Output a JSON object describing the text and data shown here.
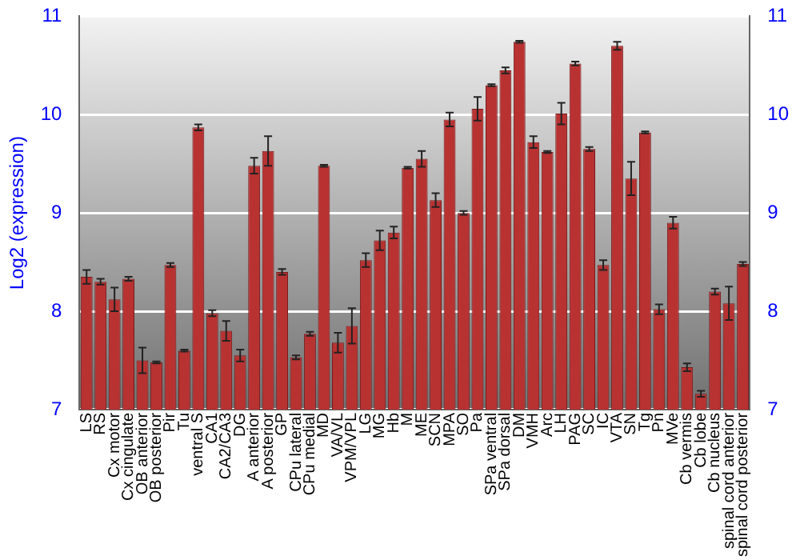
{
  "chart_data": {
    "type": "bar",
    "ylabel": "Log2 (expression)",
    "categories": [
      "LS",
      "RS",
      "Cx motor",
      "Cx cingulate",
      "OB anterior",
      "OB posterior",
      "Pir",
      "Tu",
      "ventral S",
      "CA1",
      "CA2/CA3",
      "DG",
      "A anterior",
      "A posterior",
      "GP",
      "CPu lateral",
      "CPu medial",
      "MD",
      "VA/VL",
      "VPM/VPL",
      "LG",
      "MG",
      "Hb",
      "M",
      "ME",
      "SCN",
      "MPA",
      "SO",
      "Pa",
      "SPa ventral",
      "SPa dorsal",
      "DM",
      "VMH",
      "Arc",
      "LH",
      "PAG",
      "SC",
      "IC",
      "VTA",
      "SN",
      "Tg",
      "Pn",
      "MVe",
      "Cb vermis",
      "Cb lobe",
      "Cb nucleus",
      "spinal cord anterior",
      "spinal cord posterior"
    ],
    "values": [
      8.35,
      8.3,
      8.12,
      8.33,
      7.5,
      7.48,
      8.47,
      7.6,
      9.87,
      7.98,
      7.8,
      7.55,
      9.48,
      9.63,
      8.4,
      7.53,
      7.77,
      9.48,
      7.68,
      7.85,
      8.52,
      8.72,
      8.8,
      9.46,
      9.55,
      9.13,
      9.95,
      9.0,
      10.06,
      10.3,
      10.45,
      10.74,
      9.72,
      9.62,
      10.01,
      10.52,
      9.65,
      8.47,
      10.7,
      9.35,
      9.82,
      8.02,
      8.9,
      7.43,
      7.16,
      8.2,
      8.08,
      8.48
    ],
    "errors": [
      0.07,
      0.03,
      0.12,
      0.02,
      0.13,
      0.01,
      0.02,
      0.01,
      0.03,
      0.03,
      0.1,
      0.06,
      0.08,
      0.15,
      0.03,
      0.02,
      0.02,
      0.01,
      0.1,
      0.18,
      0.07,
      0.1,
      0.06,
      0.01,
      0.08,
      0.07,
      0.07,
      0.02,
      0.12,
      0.01,
      0.03,
      0.01,
      0.06,
      0.01,
      0.11,
      0.02,
      0.02,
      0.05,
      0.04,
      0.17,
      0.01,
      0.05,
      0.06,
      0.04,
      0.03,
      0.03,
      0.17,
      0.02
    ],
    "color": "#b83232",
    "ylim": [
      7,
      11
    ],
    "yticks": [
      7,
      8,
      9,
      10,
      11
    ],
    "y2lim": [
      7,
      11
    ],
    "y2ticks": [
      7,
      8,
      9,
      10,
      11
    ],
    "grid": "y",
    "legend": false
  }
}
